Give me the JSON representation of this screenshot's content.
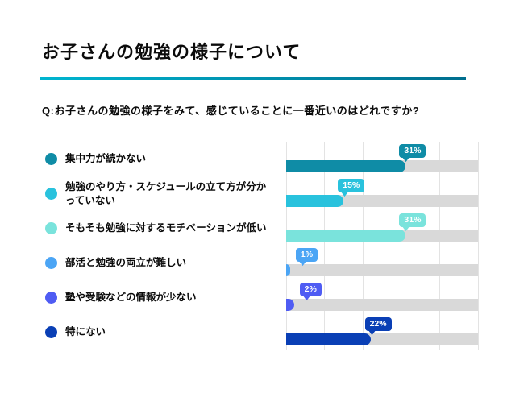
{
  "page": {
    "title": "お子さんの勉強の様子について",
    "question": "Q:お子さんの勉強の様子をみて、感じていることに一番近いのはどれですか?"
  },
  "chart_data": {
    "type": "bar",
    "orientation": "horizontal",
    "title": "お子さんの勉強の様子について",
    "question": "Q:お子さんの勉強の様子をみて、感じていることに一番近いのはどれですか?",
    "categories": [
      "集中力が続かない",
      "勉強のやり方・スケジュールの立て方が分かっていない",
      "そもそも勉強に対するモチベーションが低い",
      "部活と勉強の両立が難しい",
      "塾や受験などの情報が少ない",
      "特にない"
    ],
    "values": [
      31,
      15,
      31,
      1,
      2,
      22
    ],
    "value_labels": [
      "31%",
      "15%",
      "31%",
      "1%",
      "2%",
      "22%"
    ],
    "colors": [
      "#0f8ca6",
      "#29c2dd",
      "#7ae3dc",
      "#4ba5f5",
      "#4f5cf3",
      "#0a3fb5"
    ],
    "xlim": [
      0,
      50
    ],
    "gridlines": [
      0,
      10,
      20,
      30,
      40,
      50
    ],
    "grid_on": true,
    "legend_position": "left",
    "track_color": "#d9d9d9",
    "grid_color": "#e3e3e3"
  },
  "style": {
    "rule_gradient_start": "#00b5d0",
    "rule_gradient_end": "#006e8e",
    "background": "#ffffff",
    "text_color": "#0b0b0b"
  }
}
